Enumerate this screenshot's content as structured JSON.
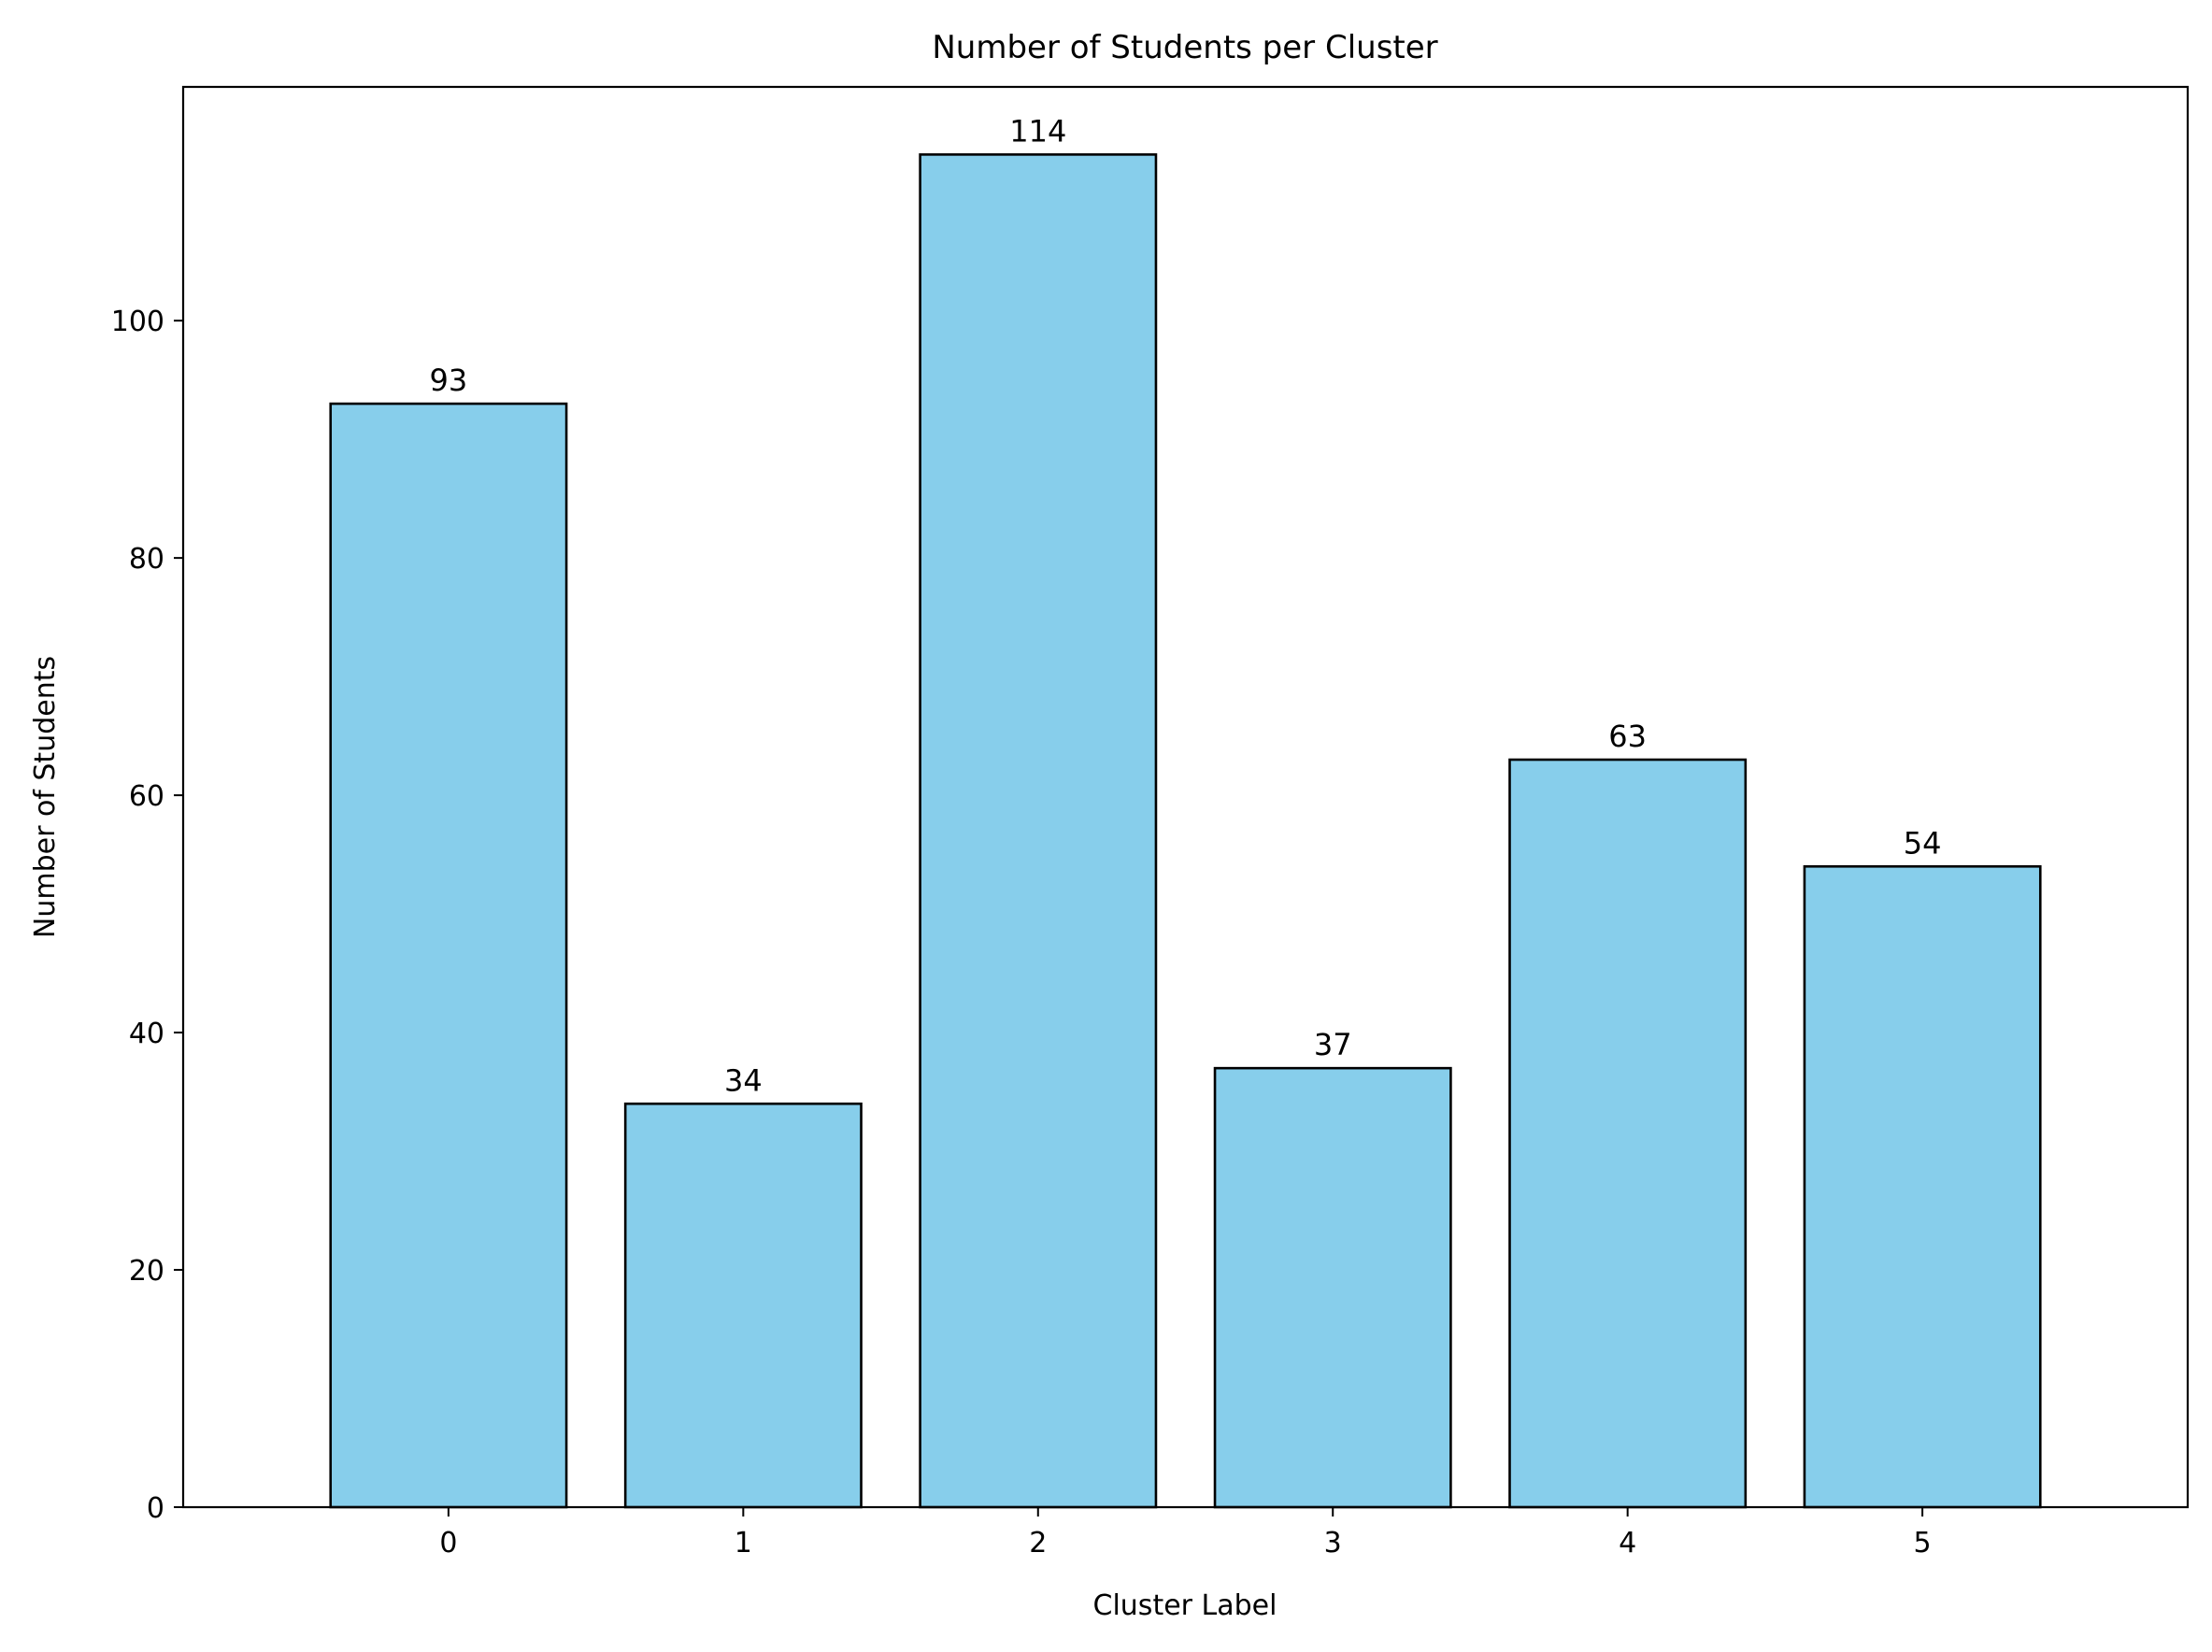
{
  "chart_data": {
    "type": "bar",
    "title": "Number of Students per Cluster",
    "xlabel": "Cluster Label",
    "ylabel": "Number of Students",
    "categories": [
      "0",
      "1",
      "2",
      "3",
      "4",
      "5"
    ],
    "values": [
      93,
      34,
      114,
      37,
      63,
      54
    ],
    "ylim": [
      0,
      119.7
    ],
    "yticks": [
      0,
      20,
      40,
      60,
      80,
      100
    ],
    "grid": false,
    "legend": "none",
    "colors": {
      "bar_fill": "#87CEEB",
      "bar_edge": "#000000"
    }
  }
}
